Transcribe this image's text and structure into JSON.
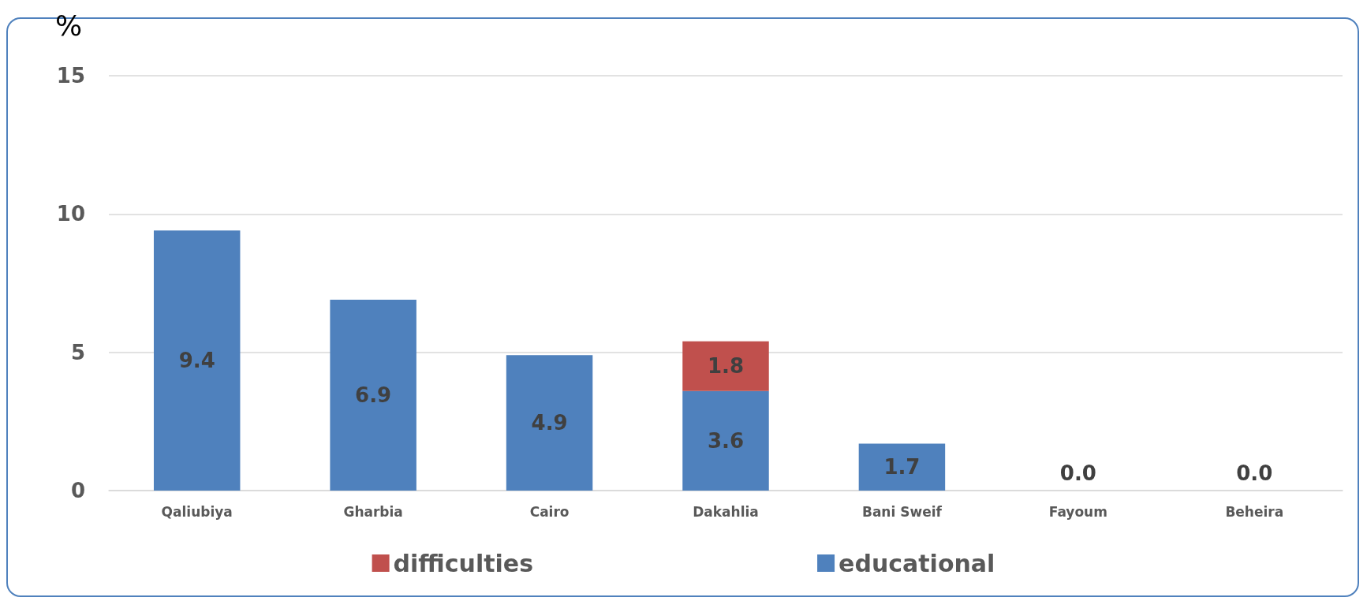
{
  "chart_data": {
    "type": "bar",
    "ylabel": "%",
    "categories": [
      "Qaliubiya",
      "Gharbia",
      "Cairo",
      "Dakahlia",
      "Bani Sweif",
      "Fayoum",
      "Beheira"
    ],
    "stacked": true,
    "series": [
      {
        "name": "educational",
        "color": "#4f81bd",
        "values": [
          9.4,
          6.9,
          4.9,
          3.6,
          1.7,
          0,
          0
        ],
        "value_labels": [
          "9.4",
          "6.9",
          "4.9",
          "3.6",
          "1.7",
          "0.0",
          "0.0"
        ]
      },
      {
        "name": "difficulties",
        "color": "#c0504d",
        "values": [
          null,
          null,
          null,
          1.8,
          null,
          null,
          null
        ],
        "value_labels": [
          null,
          null,
          null,
          "1.8",
          null,
          null,
          null
        ]
      }
    ],
    "ylim": [
      0,
      15
    ],
    "yticks": [
      0,
      5,
      10,
      15
    ],
    "grid": "y",
    "legend": "bottom"
  }
}
